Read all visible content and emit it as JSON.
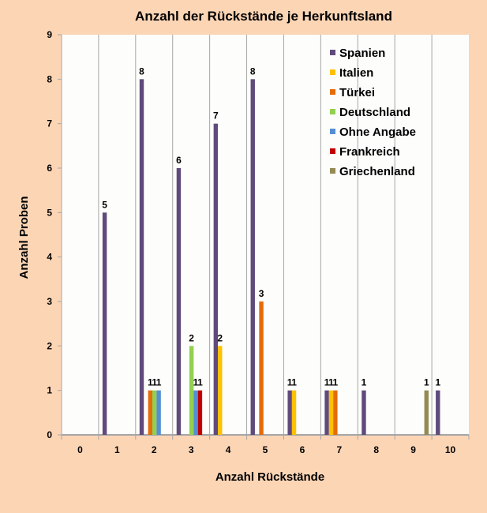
{
  "chart_data": {
    "type": "bar",
    "title": "Anzahl der Rückstände je Herkunftsland",
    "xlabel": "Anzahl Rückstände",
    "ylabel": "Anzahl Proben",
    "ylim": [
      0,
      9
    ],
    "yticks": [
      "0",
      "1",
      "2",
      "3",
      "4",
      "5",
      "6",
      "7",
      "8",
      "9"
    ],
    "categories": [
      "0",
      "1",
      "2",
      "3",
      "4",
      "5",
      "6",
      "7",
      "8",
      "9",
      "10"
    ],
    "grid": "vertical",
    "legend_position": "top-right",
    "series": [
      {
        "name": "Spanien",
        "color": "#604a7b",
        "values": [
          0,
          5,
          8,
          6,
          7,
          8,
          1,
          1,
          1,
          0,
          1
        ]
      },
      {
        "name": "Italien",
        "color": "#ffc000",
        "values": [
          0,
          0,
          0,
          0,
          2,
          0,
          1,
          1,
          0,
          0,
          0
        ]
      },
      {
        "name": "Türkei",
        "color": "#e46c0a",
        "values": [
          0,
          0,
          1,
          0,
          0,
          3,
          0,
          1,
          0,
          0,
          0
        ]
      },
      {
        "name": "Deutschland",
        "color": "#92d050",
        "values": [
          0,
          0,
          1,
          2,
          0,
          0,
          0,
          0,
          0,
          0,
          0
        ]
      },
      {
        "name": "Ohne Angabe",
        "color": "#558ed5",
        "values": [
          0,
          0,
          1,
          1,
          0,
          0,
          0,
          0,
          0,
          0,
          0
        ]
      },
      {
        "name": "Frankreich",
        "color": "#c00000",
        "values": [
          0,
          0,
          0,
          1,
          0,
          0,
          0,
          0,
          0,
          0,
          0
        ]
      },
      {
        "name": "Griechenland",
        "color": "#948a54",
        "values": [
          0,
          0,
          0,
          0,
          0,
          0,
          0,
          0,
          0,
          1,
          0
        ]
      }
    ]
  }
}
